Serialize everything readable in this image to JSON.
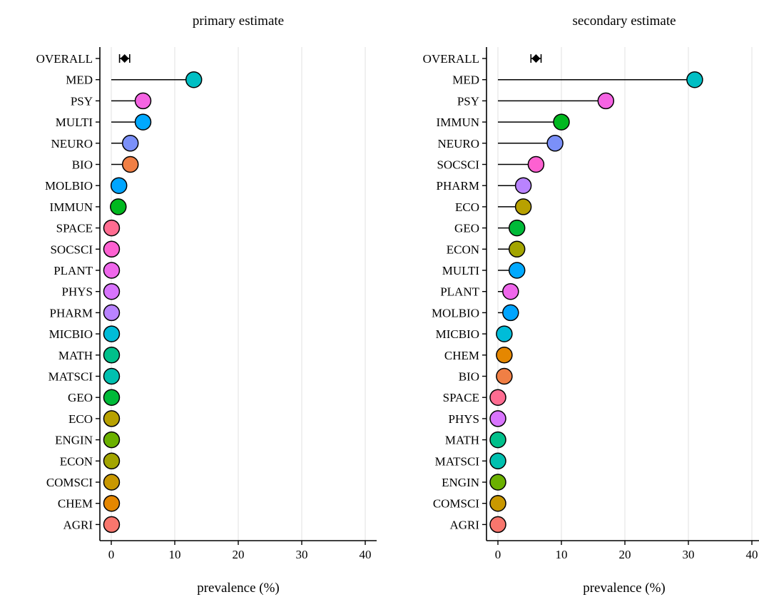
{
  "colors": {
    "AGRI": "#f8766d",
    "CHEM": "#e58700",
    "COMSCI": "#c99800",
    "ECON": "#a3a500",
    "ENGIN": "#6bb100",
    "ECO": "#b8a100",
    "GEO": "#00ba38",
    "MATSCI": "#00c0af",
    "MATH": "#00c08b",
    "MICBIO": "#00bcd8",
    "PHARM": "#b983ff",
    "PHYS": "#d874fd",
    "PLANT": "#ef67eb",
    "SOCSCI": "#fd61d1",
    "SPACE": "#ff6c91",
    "IMMUN": "#00b81f",
    "MOLBIO": "#00a5ff",
    "BIO": "#f07f45",
    "NEURO": "#7b90f8",
    "MULTI": "#00a9ff",
    "PSY": "#f564e3",
    "MED": "#00bfc4",
    "grid": "#e6e6e6",
    "axis": "#000000",
    "marker": "#000000"
  },
  "chart_data": [
    {
      "type": "lollipop",
      "title": "primary estimate",
      "xlabel": "prevalence (%)",
      "ylabel": "",
      "xlim": [
        -1.5,
        41.5
      ],
      "xticks": [
        0,
        10,
        20,
        30,
        40
      ],
      "grid": "vertical",
      "categories": [
        "OVERALL",
        "MED",
        "PSY",
        "MULTI",
        "NEURO",
        "BIO",
        "MOLBIO",
        "IMMUN",
        "SPACE",
        "SOCSCI",
        "PLANT",
        "PHYS",
        "PHARM",
        "MICBIO",
        "MATH",
        "MATSCI",
        "GEO",
        "ECO",
        "ENGIN",
        "ECON",
        "COMSCI",
        "CHEM",
        "AGRI"
      ],
      "values": [
        null,
        13.0,
        5.0,
        5.0,
        3.0,
        3.0,
        1.2,
        1.1,
        0.05,
        0.05,
        0.05,
        0.05,
        0.05,
        0.05,
        0.05,
        0.05,
        0.05,
        0.05,
        0.05,
        0.05,
        0.05,
        0.05,
        0.05
      ],
      "overall": {
        "estimate": 2.1,
        "lower": 1.3,
        "upper": 2.9
      }
    },
    {
      "type": "lollipop",
      "title": "secondary estimate",
      "xlabel": "prevalence (%)",
      "ylabel": "",
      "xlim": [
        -1.5,
        41.5
      ],
      "xticks": [
        0,
        10,
        20,
        30,
        40
      ],
      "grid": "vertical",
      "categories": [
        "OVERALL",
        "MED",
        "PSY",
        "IMMUN",
        "NEURO",
        "SOCSCI",
        "PHARM",
        "ECO",
        "GEO",
        "ECON",
        "MULTI",
        "PLANT",
        "MOLBIO",
        "MICBIO",
        "CHEM",
        "BIO",
        "SPACE",
        "PHYS",
        "MATH",
        "MATSCI",
        "ENGIN",
        "COMSCI",
        "AGRI"
      ],
      "values": [
        null,
        31.0,
        17.0,
        10.0,
        9.0,
        6.0,
        4.0,
        4.0,
        3.0,
        3.0,
        3.0,
        2.0,
        2.0,
        1.0,
        1.0,
        1.0,
        0.0,
        0.0,
        0.0,
        0.0,
        0.0,
        0.0,
        0.0
      ],
      "overall": {
        "estimate": 6.0,
        "lower": 5.2,
        "upper": 6.8
      }
    }
  ]
}
